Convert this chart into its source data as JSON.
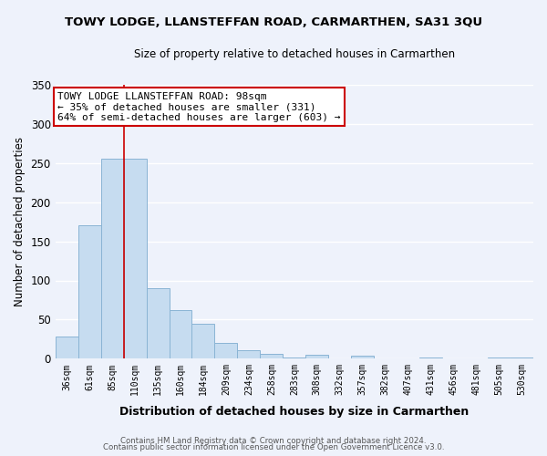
{
  "title": "TOWY LODGE, LLANSTEFFAN ROAD, CARMARTHEN, SA31 3QU",
  "subtitle": "Size of property relative to detached houses in Carmarthen",
  "xlabel": "Distribution of detached houses by size in Carmarthen",
  "ylabel": "Number of detached properties",
  "bar_color": "#c6dcf0",
  "bar_edge_color": "#8ab4d4",
  "categories": [
    "36sqm",
    "61sqm",
    "85sqm",
    "110sqm",
    "135sqm",
    "160sqm",
    "184sqm",
    "209sqm",
    "234sqm",
    "258sqm",
    "283sqm",
    "308sqm",
    "332sqm",
    "357sqm",
    "382sqm",
    "407sqm",
    "431sqm",
    "456sqm",
    "481sqm",
    "505sqm",
    "530sqm"
  ],
  "values": [
    28,
    170,
    256,
    256,
    90,
    62,
    45,
    20,
    11,
    6,
    1,
    5,
    0,
    4,
    0,
    0,
    2,
    0,
    0,
    1,
    1
  ],
  "ylim": [
    0,
    350
  ],
  "yticks": [
    0,
    50,
    100,
    150,
    200,
    250,
    300,
    350
  ],
  "vline_x": 2.5,
  "vline_color": "#cc0000",
  "annotation_text": "TOWY LODGE LLANSTEFFAN ROAD: 98sqm\n← 35% of detached houses are smaller (331)\n64% of semi-detached houses are larger (603) →",
  "annotation_box_color": "white",
  "annotation_box_edge": "#cc0000",
  "footer_line1": "Contains HM Land Registry data © Crown copyright and database right 2024.",
  "footer_line2": "Contains public sector information licensed under the Open Government Licence v3.0.",
  "background_color": "#eef2fb",
  "grid_color": "white"
}
